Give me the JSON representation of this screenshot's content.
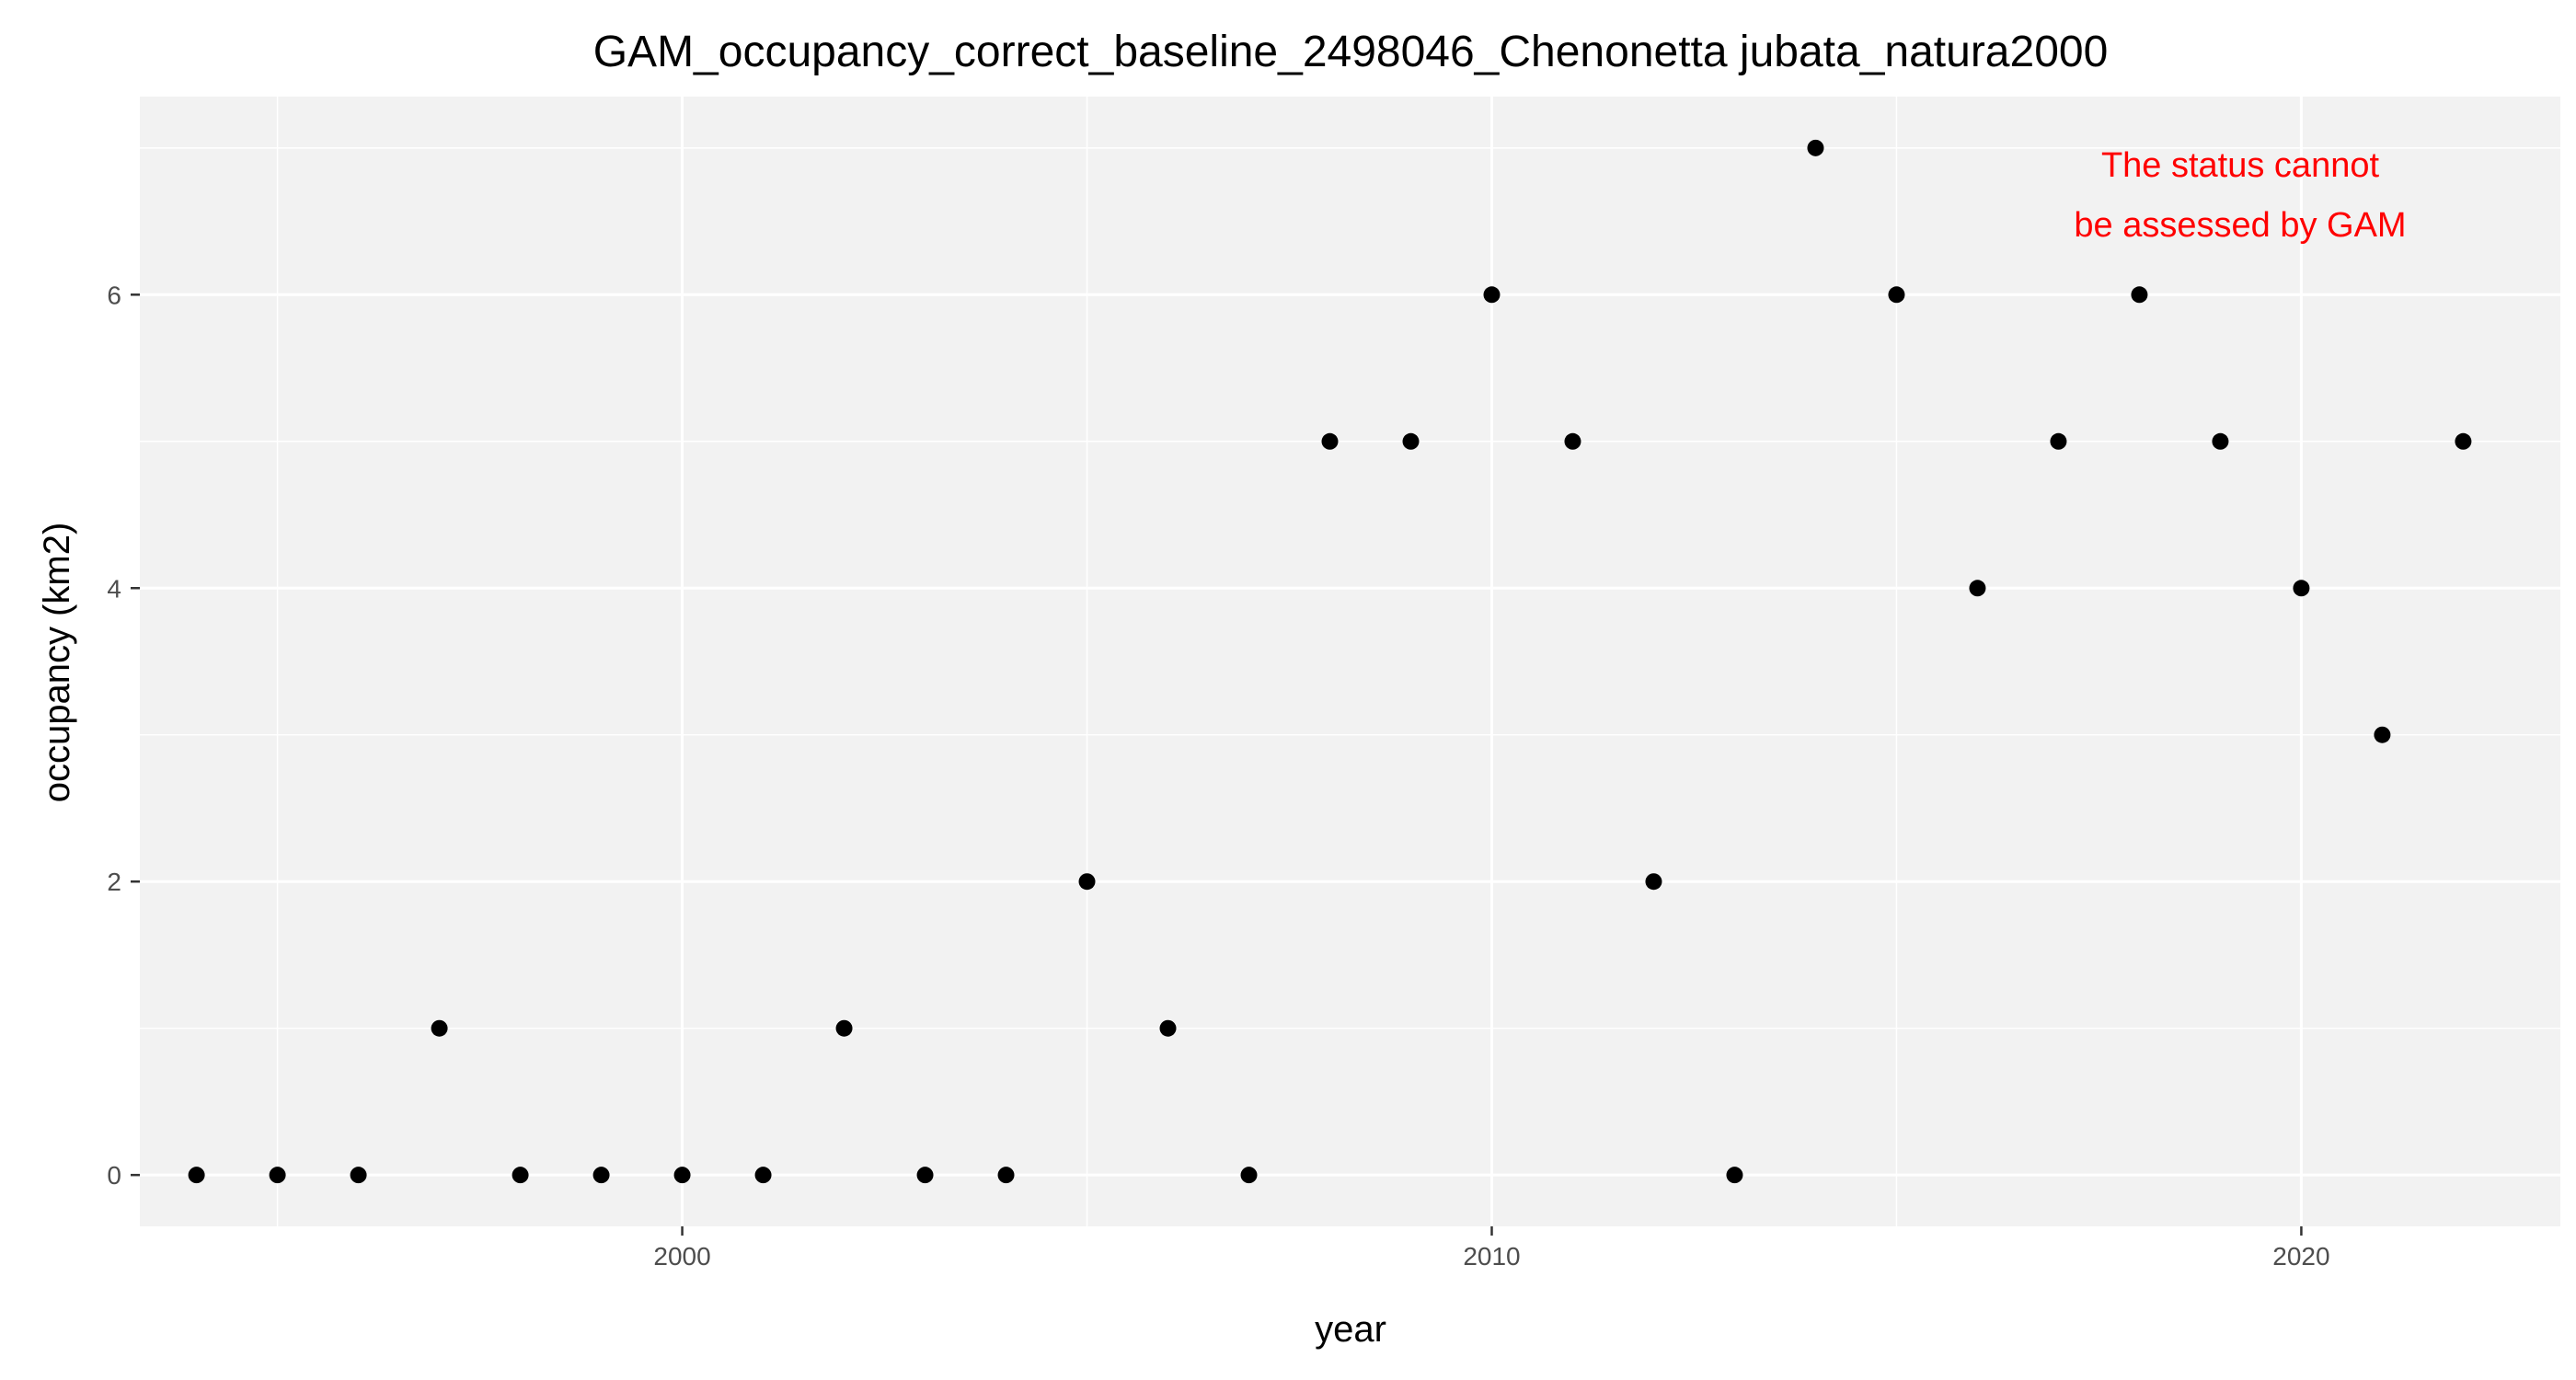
{
  "chart_data": {
    "type": "scatter",
    "title": "GAM_occupancy_correct_baseline_2498046_Chenonetta jubata_natura2000",
    "xlabel": "year",
    "ylabel": "occupancy (km2)",
    "xlim": [
      1993.3,
      2023.2
    ],
    "ylim": [
      -0.35,
      7.35
    ],
    "x_ticks": [
      2000,
      2010,
      2020
    ],
    "y_ticks": [
      0,
      2,
      4,
      6
    ],
    "grid": true,
    "point_color": "#000000",
    "panel_color": "#f2f2f2",
    "annotation": {
      "lines": [
        "The status cannot",
        "be assessed by GAM"
      ],
      "color": "#ff0000",
      "position": "top-right"
    },
    "x": [
      1994,
      1995,
      1996,
      1997,
      1998,
      1999,
      2000,
      2001,
      2002,
      2003,
      2004,
      2005,
      2006,
      2007,
      2008,
      2009,
      2010,
      2011,
      2012,
      2013,
      2014,
      2015,
      2016,
      2017,
      2018,
      2019,
      2020,
      2021,
      2022
    ],
    "y": [
      0,
      0,
      0,
      1,
      0,
      0,
      0,
      0,
      1,
      0,
      0,
      2,
      1,
      0,
      5,
      5,
      6,
      5,
      2,
      0,
      7,
      6,
      4,
      5,
      6,
      5,
      4,
      3,
      5
    ]
  }
}
